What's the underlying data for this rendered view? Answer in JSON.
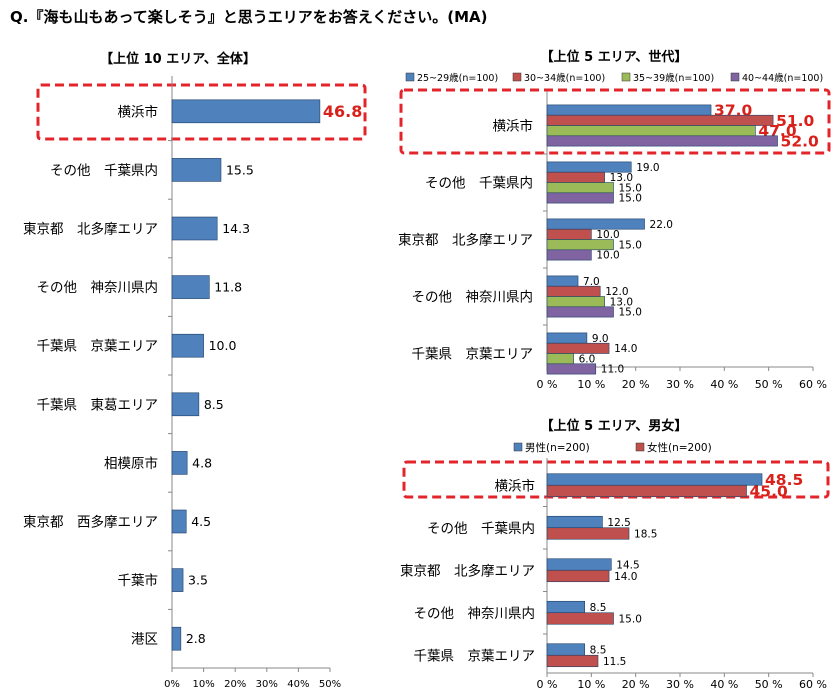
{
  "question": "Q.『海も山もあって楽しそう』と思うエリアをお答えください。(MA)",
  "chart_data": [
    {
      "type": "bar",
      "orientation": "horizontal",
      "title": "【上位 10 エリア、全体】",
      "categories": [
        "横浜市",
        "その他　千葉県内",
        "東京都　北多摩エリア",
        "その他　神奈川県内",
        "千葉県　京葉エリア",
        "千葉県　東葛エリア",
        "相模原市",
        "東京都　西多摩エリア",
        "千葉市",
        "港区"
      ],
      "series": [
        {
          "values": [
            46.8,
            15.5,
            14.3,
            11.8,
            10.0,
            8.5,
            4.8,
            4.5,
            3.5,
            2.8
          ],
          "labels": [
            "46.8",
            "15.5",
            "14.3",
            "11.8",
            "10.0",
            "8.5",
            "4.8",
            "4.5",
            "3.5",
            "2.8"
          ]
        }
      ],
      "xlim": [
        0,
        50
      ],
      "xticks": [
        "0%",
        "10%",
        "20%",
        "30%",
        "40%",
        "50%"
      ],
      "highlight": "横浜市",
      "colors": {
        "bar": "#4f81bd",
        "highlight_box": "#e3242b",
        "highlight_label": "#d9211b"
      }
    },
    {
      "type": "bar",
      "orientation": "horizontal",
      "title": "【上位 5 エリア、世代】",
      "categories": [
        "横浜市",
        "その他　千葉県内",
        "東京都　北多摩エリア",
        "その他　神奈川県内",
        "千葉県　京葉エリア"
      ],
      "series": [
        {
          "name": "25~29歳(n=100)",
          "color": "#4f81bd",
          "values": [
            37.0,
            19.0,
            22.0,
            7.0,
            9.0
          ],
          "labels": [
            "37.0",
            "19.0",
            "22.0",
            "7.0",
            "9.0"
          ]
        },
        {
          "name": "30~34歳(n=100)",
          "color": "#c0504d",
          "values": [
            51.0,
            13.0,
            10.0,
            12.0,
            14.0
          ],
          "labels": [
            "51.0",
            "13.0",
            "10.0",
            "12.0",
            "14.0"
          ]
        },
        {
          "name": "35~39歳(n=100)",
          "color": "#9bbb59",
          "values": [
            47.0,
            15.0,
            15.0,
            13.0,
            6.0
          ],
          "labels": [
            "47.0",
            "15.0",
            "15.0",
            "13.0",
            "6.0"
          ]
        },
        {
          "name": "40~44歳(n=100)",
          "color": "#8064a2",
          "values": [
            52.0,
            15.0,
            10.0,
            15.0,
            11.0
          ],
          "labels": [
            "52.0",
            "15.0",
            "10.0",
            "15.0",
            "11.0"
          ]
        }
      ],
      "xlim": [
        0,
        60
      ],
      "xticks": [
        "0 %",
        "10 %",
        "20 %",
        "30 %",
        "40 %",
        "50 %",
        "60 %"
      ],
      "legend": "top",
      "highlight": "横浜市",
      "colors": {
        "highlight_box": "#e3242b",
        "highlight_label": "#d9211b"
      }
    },
    {
      "type": "bar",
      "orientation": "horizontal",
      "title": "【上位 5 エリア、男女】",
      "categories": [
        "横浜市",
        "その他　千葉県内",
        "東京都　北多摩エリア",
        "その他　神奈川県内",
        "千葉県　京葉エリア"
      ],
      "series": [
        {
          "name": "男性(n=200)",
          "color": "#4f81bd",
          "values": [
            48.5,
            12.5,
            14.5,
            8.5,
            8.5
          ],
          "labels": [
            "48.5",
            "12.5",
            "14.5",
            "8.5",
            "8.5"
          ]
        },
        {
          "name": "女性(n=200)",
          "color": "#c0504d",
          "values": [
            45.0,
            18.5,
            14.0,
            15.0,
            11.5
          ],
          "labels": [
            "45.0",
            "18.5",
            "14.0",
            "15.0",
            "11.5"
          ]
        }
      ],
      "xlim": [
        0,
        60
      ],
      "xticks": [
        "0 %",
        "10 %",
        "20 %",
        "30 %",
        "40 %",
        "50 %",
        "60 %"
      ],
      "legend": "top",
      "highlight": "横浜市",
      "colors": {
        "highlight_box": "#e3242b",
        "highlight_label": "#d9211b"
      }
    }
  ]
}
